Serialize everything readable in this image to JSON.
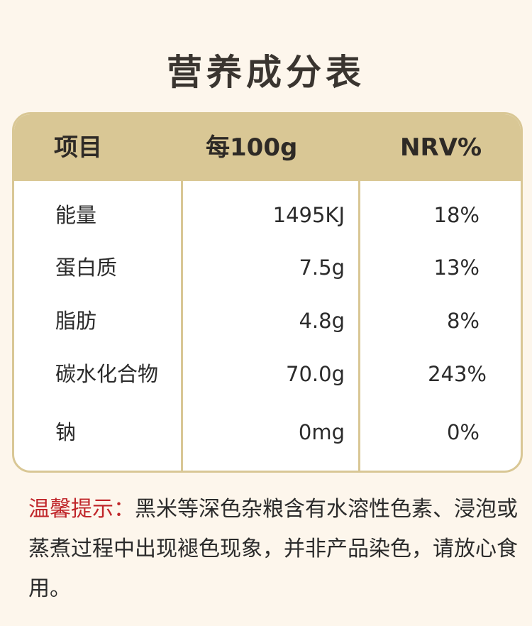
{
  "page": {
    "title": "营养成分表"
  },
  "table": {
    "headers": [
      "项目",
      "每100g",
      "NRV%"
    ],
    "rows": [
      {
        "item": "能量",
        "per100g": "1495KJ",
        "nrv": "18%"
      },
      {
        "item": "蛋白质",
        "per100g": "7.5g",
        "nrv": "13%"
      },
      {
        "item": "脂肪",
        "per100g": "4.8g",
        "nrv": "8%"
      },
      {
        "item": "碳水化合物",
        "per100g": "70.0g",
        "nrv": "243%"
      },
      {
        "item": "钠",
        "per100g": "0mg",
        "nrv": "0%"
      }
    ]
  },
  "note": {
    "label": "温馨提示：",
    "text": "黑米等深色杂粮含有水溶性色素、浸泡或蒸煮过程中出现褪色现象，并非产品染色，请放心食用。"
  },
  "colors": {
    "background": "#fdf6ec",
    "header_band": "#d9c795",
    "note_label": "#c0262a"
  }
}
